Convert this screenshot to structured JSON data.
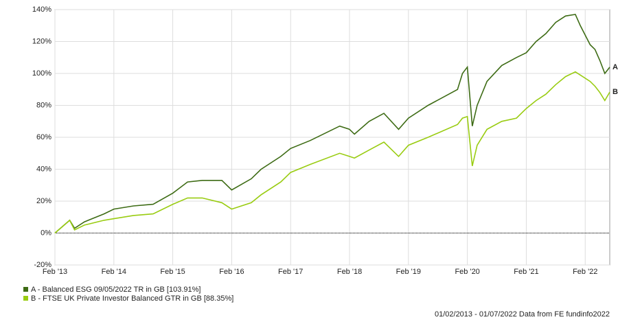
{
  "chart_data": {
    "type": "line",
    "x": [
      "2013-02",
      "2013-05",
      "2013-06",
      "2013-08",
      "2013-12",
      "2014-02",
      "2014-06",
      "2014-10",
      "2015-02",
      "2015-05",
      "2015-08",
      "2015-12",
      "2016-02",
      "2016-06",
      "2016-08",
      "2016-12",
      "2017-02",
      "2017-06",
      "2017-12",
      "2018-02",
      "2018-03",
      "2018-06",
      "2018-09",
      "2018-12",
      "2019-02",
      "2019-06",
      "2019-12",
      "2020-01",
      "2020-02",
      "2020-03",
      "2020-04",
      "2020-06",
      "2020-09",
      "2020-12",
      "2021-02",
      "2021-04",
      "2021-06",
      "2021-08",
      "2021-10",
      "2021-12",
      "2022-01",
      "2022-03",
      "2022-04",
      "2022-05",
      "2022-06",
      "2022-07"
    ],
    "series": [
      {
        "name": "A - Balanced ESG 09/05/2022 TR in GB [103.91%]",
        "label": "A",
        "color": "#3d6b14",
        "values": [
          0,
          8,
          3,
          7,
          12,
          15,
          17,
          18,
          25,
          32,
          33,
          33,
          27,
          34,
          40,
          48,
          53,
          58,
          67,
          65,
          62,
          70,
          75,
          65,
          72,
          80,
          90,
          100,
          104,
          67,
          80,
          95,
          105,
          110,
          113,
          120,
          125,
          132,
          136,
          137,
          130,
          118,
          115,
          108,
          100,
          103.91
        ]
      },
      {
        "name": "B - FTSE UK Private Investor Balanced GTR in GB [88.35%]",
        "label": "B",
        "color": "#99cc11",
        "values": [
          0,
          8,
          2,
          5,
          8,
          9,
          11,
          12,
          18,
          22,
          22,
          19,
          15,
          19,
          24,
          32,
          38,
          43,
          50,
          48,
          47,
          52,
          57,
          48,
          55,
          60,
          68,
          72,
          73,
          42,
          55,
          65,
          70,
          72,
          78,
          83,
          87,
          93,
          98,
          101,
          99,
          95,
          92,
          88,
          83,
          88.35
        ]
      }
    ],
    "xlim": [
      "2013-02",
      "2022-07"
    ],
    "xticks": [
      {
        "value": "2013-02",
        "label": "Feb '13"
      },
      {
        "value": "2014-02",
        "label": "Feb '14"
      },
      {
        "value": "2015-02",
        "label": "Feb '15"
      },
      {
        "value": "2016-02",
        "label": "Feb '16"
      },
      {
        "value": "2017-02",
        "label": "Feb '17"
      },
      {
        "value": "2018-02",
        "label": "Feb '18"
      },
      {
        "value": "2019-02",
        "label": "Feb '19"
      },
      {
        "value": "2020-02",
        "label": "Feb '20"
      },
      {
        "value": "2021-02",
        "label": "Feb '21"
      },
      {
        "value": "2022-02",
        "label": "Feb '22"
      }
    ],
    "ylim": [
      -20,
      140
    ],
    "yticks": [
      {
        "value": -20,
        "label": "-20%"
      },
      {
        "value": 0,
        "label": "0%"
      },
      {
        "value": 20,
        "label": "20%"
      },
      {
        "value": 40,
        "label": "40%"
      },
      {
        "value": 60,
        "label": "60%"
      },
      {
        "value": 80,
        "label": "80%"
      },
      {
        "value": 100,
        "label": "100%"
      },
      {
        "value": 120,
        "label": "120%"
      },
      {
        "value": 140,
        "label": "140%"
      }
    ],
    "grid": true,
    "footer": "01/02/2013 - 01/07/2022 Data from FE fundinfo2022"
  }
}
